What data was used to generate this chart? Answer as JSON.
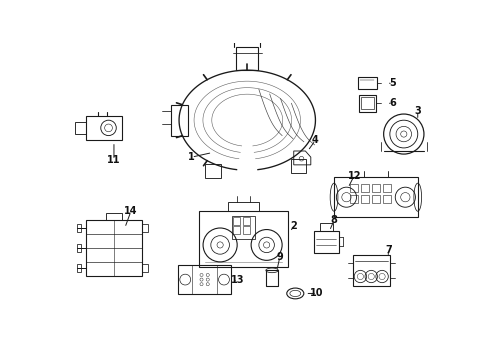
{
  "background_color": "#ffffff",
  "line_color": "#1a1a1a",
  "label_color": "#111111",
  "fig_width": 4.9,
  "fig_height": 3.6,
  "dpi": 100,
  "label_fontsize": 7.0
}
